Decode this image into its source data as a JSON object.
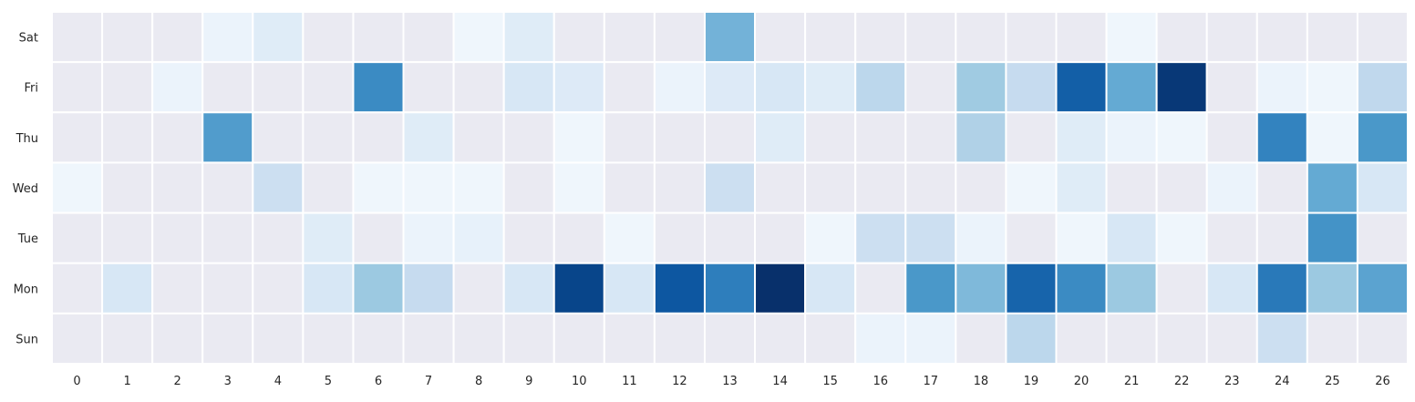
{
  "chart_data": {
    "type": "heatmap",
    "title": "",
    "xlabel": "",
    "ylabel": "",
    "x_categories": [
      "0",
      "1",
      "2",
      "3",
      "4",
      "5",
      "6",
      "7",
      "8",
      "9",
      "10",
      "11",
      "12",
      "13",
      "14",
      "15",
      "16",
      "17",
      "18",
      "19",
      "20",
      "21",
      "22",
      "23",
      "24",
      "25",
      "26"
    ],
    "y_categories": [
      "Sat",
      "Fri",
      "Thu",
      "Wed",
      "Tue",
      "Mon",
      "Sun"
    ],
    "value_range": [
      0,
      1
    ],
    "colormap": "Blues",
    "empty_cell_color": "#eaeaf2",
    "grid": false,
    "values": [
      [
        0,
        0,
        0,
        0.06,
        0.12,
        0,
        0,
        0,
        0.04,
        0.12,
        0,
        0,
        0,
        0.48,
        0,
        0,
        0,
        0,
        0,
        0,
        0,
        0.04,
        0,
        0,
        0,
        0,
        0
      ],
      [
        0,
        0,
        0.06,
        0,
        0,
        0,
        0.65,
        0,
        0,
        0.16,
        0.13,
        0,
        0.06,
        0.13,
        0.16,
        0.12,
        0.28,
        0,
        0.37,
        0.25,
        0.82,
        0.52,
        0.97,
        0,
        0.06,
        0.04,
        0.27
      ],
      [
        0,
        0,
        0,
        0.58,
        0,
        0,
        0,
        0.12,
        0,
        0,
        0.04,
        0,
        0,
        0,
        0.12,
        0,
        0,
        0,
        0.32,
        0,
        0.12,
        0.06,
        0.04,
        0,
        0.68,
        0.04,
        0.6
      ],
      [
        0.04,
        0,
        0,
        0,
        0.22,
        0,
        0.04,
        0.04,
        0.04,
        0,
        0.04,
        0,
        0,
        0.22,
        0,
        0,
        0,
        0,
        0,
        0.04,
        0.12,
        0,
        0,
        0.06,
        0,
        0.52,
        0.16
      ],
      [
        0,
        0,
        0,
        0,
        0,
        0.12,
        0,
        0.06,
        0.08,
        0,
        0,
        0.04,
        0,
        0,
        0,
        0.04,
        0.22,
        0.22,
        0.06,
        0,
        0.04,
        0.16,
        0.04,
        0,
        0,
        0.62,
        0
      ],
      [
        0,
        0.16,
        0,
        0,
        0,
        0.16,
        0.38,
        0.25,
        0,
        0.16,
        0.92,
        0.16,
        0.85,
        0.7,
        1.0,
        0.16,
        0,
        0.6,
        0.45,
        0.8,
        0.65,
        0.38,
        0,
        0.16,
        0.72,
        0.38,
        0.55
      ],
      [
        0,
        0,
        0,
        0,
        0,
        0,
        0,
        0,
        0,
        0,
        0,
        0,
        0,
        0,
        0,
        0,
        0.06,
        0.06,
        0,
        0.28,
        0,
        0,
        0,
        0,
        0.22,
        0,
        0
      ]
    ]
  }
}
